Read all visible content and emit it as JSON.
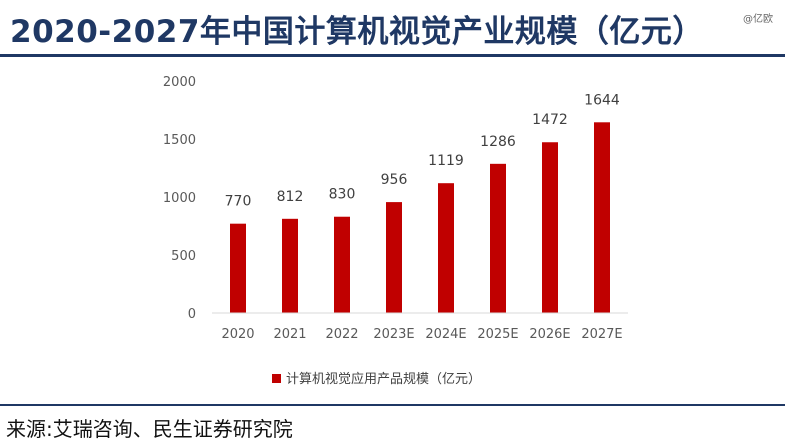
{
  "header": {
    "title": "2020-2027年中国计算机视觉产业规模（亿元）",
    "watermark": "@亿欧"
  },
  "footer": {
    "source": "来源:艾瑞咨询、民生证券研究院"
  },
  "colors": {
    "accent": "#c00000",
    "title": "#1f3864",
    "rule": "#1f3864"
  },
  "chart_data": {
    "type": "bar",
    "categories": [
      "2020",
      "2021",
      "2022",
      "2023E",
      "2024E",
      "2025E",
      "2026E",
      "2027E"
    ],
    "series": [
      {
        "name": "计算机视觉应用产品规模（亿元）",
        "values": [
          770,
          812,
          830,
          956,
          1119,
          1286,
          1472,
          1644
        ]
      }
    ],
    "ylim": [
      0,
      2000
    ],
    "yticks": [
      0,
      500,
      1000,
      1500,
      2000
    ],
    "grid": false,
    "legend": "bottom",
    "title": "",
    "xlabel": "",
    "ylabel": ""
  }
}
